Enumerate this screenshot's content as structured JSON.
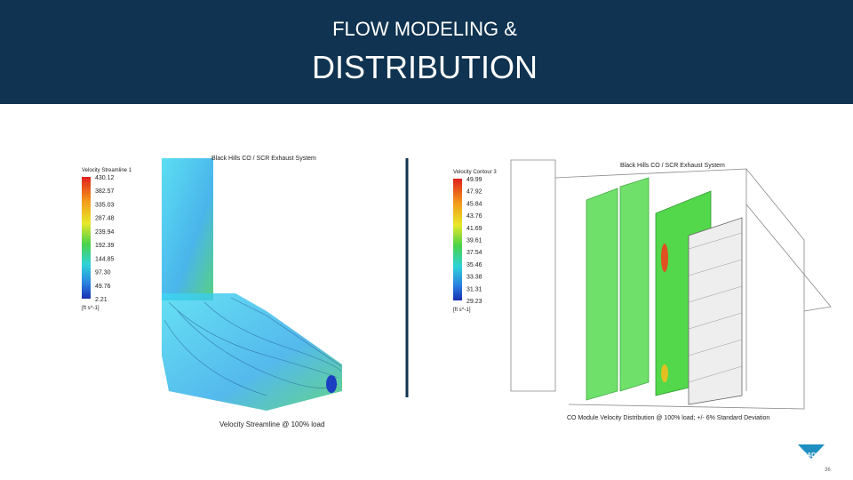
{
  "header": {
    "title_line1": "FLOW MODELING &",
    "title_line2": "DISTRIBUTION"
  },
  "left_panel": {
    "title": "Black Hills CO / SCR Exhaust System",
    "legend_title": "Velocity Streamline 1",
    "legend_values": [
      "430.12",
      "382.57",
      "335.03",
      "287.48",
      "239.94",
      "192.39",
      "144.85",
      "97.30",
      "49.76",
      "2.21"
    ],
    "legend_unit": "[ft s^-1]",
    "caption": "Velocity Streamline @ 100% load"
  },
  "right_panel": {
    "title": "Black Hills CO / SCR Exhaust System",
    "legend_title": "Velocity Contour 3",
    "legend_values": [
      "49.99",
      "47.92",
      "45.84",
      "43.76",
      "41.69",
      "39.61",
      "37.54",
      "35.46",
      "33.38",
      "31.31",
      "29.23"
    ],
    "legend_unit": "[ft s^-1]",
    "caption": "CO Module Velocity Distribution @ 100% load; +/- 6% Standard Deviation"
  },
  "logo": {
    "text": "BRADEN",
    "page_number": "36"
  }
}
